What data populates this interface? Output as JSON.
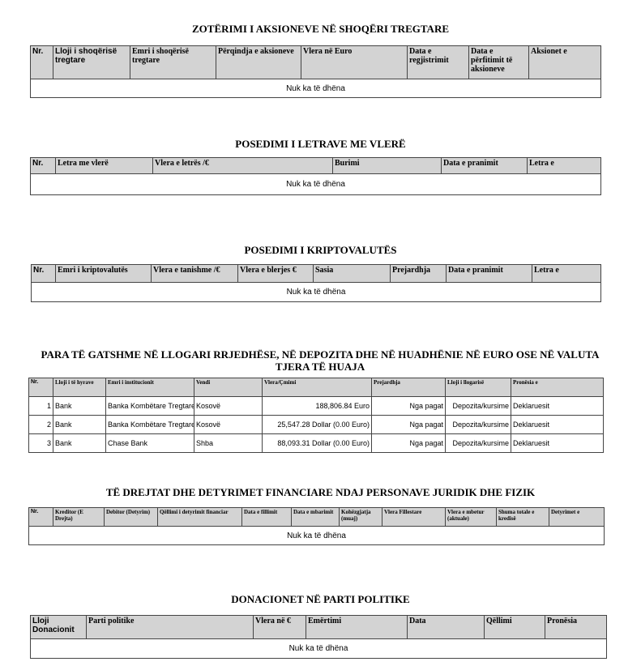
{
  "empty_text": "Nuk ka të dhëna",
  "sections": [
    {
      "id": "aksione",
      "title": "ZOTËRIMI I AKSIONEVE NË SHOQËRI TREGTARE",
      "headers": [
        "Nr.",
        "Lloji i shoqërisë tregtare",
        "Emri i shoqërisë tregtare",
        "Përqindja e aksioneve",
        "Vlera në Euro",
        "Data e regjistrimit",
        "Data e përfitimit të aksioneve",
        "Aksionet e"
      ],
      "rows": []
    },
    {
      "id": "letra",
      "title": "POSEDIMI I LETRAVE ME VLERË",
      "headers": [
        "Nr.",
        "Letra me vlerë",
        "Vlera e letrës /€",
        "Burimi",
        "Data e pranimit",
        "Letra e"
      ],
      "rows": []
    },
    {
      "id": "kripto",
      "title": "POSEDIMI I KRIPTOVALUTËS",
      "headers": [
        "Nr.",
        "Emri i kriptovalutës",
        "Vlera e tanishme /€",
        "Vlera e blerjes €",
        "Sasia",
        "Prejardhja",
        "Data e pranimit",
        "Letra e"
      ],
      "rows": []
    },
    {
      "id": "para",
      "title": "PARA TË GATSHME NË LLOGARI RRJEDHËSE, NË DEPOZITA DHE NË HUADHËNIE NË EURO OSE NË VALUTA TJERA TË HUAJA",
      "headers": [
        "Nr.",
        "Lloji i të hyrave",
        "Emri i institucionit",
        "Vendi",
        "Vlera/Çmimi",
        "Prejardhja",
        "Lloji i llogarisë",
        "Pronësia e"
      ],
      "rows": [
        [
          "1",
          "Bank",
          "Banka Kombëtare Tregtare",
          "Kosovë",
          "188,806.84 Euro",
          "Nga pagat",
          "Depozita/kursime",
          "Deklaruesit"
        ],
        [
          "2",
          "Bank",
          "Banka Kombëtare Tregtare",
          "Kosovë",
          "25,547.28 Dollar (0.00  Euro)",
          "Nga pagat",
          "Depozita/kursime",
          "Deklaruesit"
        ],
        [
          "3",
          "Bank",
          "Chase Bank",
          "Shba",
          "88,093.31 Dollar (0.00  Euro)",
          "Nga pagat",
          "Depozita/kursime",
          "Deklaruesit"
        ]
      ]
    },
    {
      "id": "detyrime",
      "title": "TË DREJTAT DHE DETYRIMET FINANCIARE NDAJ PERSONAVE JURIDIK DHE FIZIK",
      "headers": [
        "Nr.",
        "Kreditor (E Drejta)",
        "Debitor (Detyrim)",
        "Qëllimi i detyrimit financiar",
        "Data e fillimit",
        "Data e mbarimit",
        "Kohëzgjatja (muaj)",
        "Vlera Fillestare",
        "Vlera e mbetur (aktuale)",
        "Shuma totale e kredisë",
        "Detyrimet e"
      ],
      "rows": []
    },
    {
      "id": "donacione",
      "title": "DONACIONET NË PARTI POLITIKE",
      "headers": [
        "Lloji Donacionit",
        "Parti politike",
        "Vlera në €",
        "Emërtimi",
        "Data",
        "Qëllimi",
        "Pronësia"
      ],
      "rows": []
    }
  ]
}
